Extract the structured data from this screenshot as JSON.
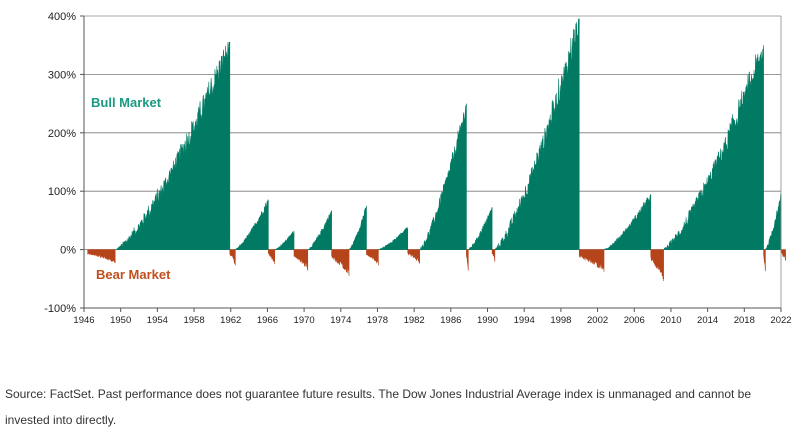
{
  "chart_data": {
    "type": "area",
    "title": "",
    "xlabel": "",
    "ylabel": "",
    "xlim": [
      1946,
      2022
    ],
    "ylim": [
      -100,
      400
    ],
    "y_ticks": [
      -100,
      0,
      100,
      200,
      300,
      400
    ],
    "y_tick_labels": [
      "-100%",
      "0%",
      "100%",
      "200%",
      "300%",
      "400%"
    ],
    "x_ticks": [
      1946,
      1950,
      1954,
      1958,
      1962,
      1966,
      1970,
      1974,
      1978,
      1982,
      1986,
      1990,
      1994,
      1998,
      2002,
      2006,
      2010,
      2014,
      2018,
      2022
    ],
    "x_tick_labels": [
      "1946",
      "1950",
      "1954",
      "1958",
      "1962",
      "1966",
      "1970",
      "1974",
      "1978",
      "1982",
      "1986",
      "1990",
      "1994",
      "1998",
      "2002",
      "2006",
      "2010",
      "2014",
      "2018",
      "2022"
    ],
    "grid": true,
    "series": [
      {
        "name": "Bull Market",
        "color": "#007a63",
        "markets": [
          {
            "start": 1949.5,
            "end": 1961.9,
            "peak": 355
          },
          {
            "start": 1962.5,
            "end": 1966.1,
            "peak": 85
          },
          {
            "start": 1966.8,
            "end": 1968.9,
            "peak": 32
          },
          {
            "start": 1970.4,
            "end": 1973.0,
            "peak": 67
          },
          {
            "start": 1974.9,
            "end": 1976.8,
            "peak": 75
          },
          {
            "start": 1978.1,
            "end": 1981.3,
            "peak": 38
          },
          {
            "start": 1982.6,
            "end": 1987.7,
            "peak": 250
          },
          {
            "start": 1987.9,
            "end": 1990.5,
            "peak": 72
          },
          {
            "start": 1990.8,
            "end": 2000.0,
            "peak": 395
          },
          {
            "start": 2002.7,
            "end": 2007.8,
            "peak": 94
          },
          {
            "start": 2009.2,
            "end": 2020.1,
            "peak": 350
          },
          {
            "start": 2020.3,
            "end": 2022.0,
            "peak": 95
          }
        ]
      },
      {
        "name": "Bear Market",
        "color": "#b5441a",
        "markets": [
          {
            "start": 1946.4,
            "end": 1949.4,
            "trough": -23
          },
          {
            "start": 1961.9,
            "end": 1962.5,
            "trough": -27
          },
          {
            "start": 1966.1,
            "end": 1966.8,
            "trough": -25
          },
          {
            "start": 1968.9,
            "end": 1970.4,
            "trough": -36
          },
          {
            "start": 1973.0,
            "end": 1974.9,
            "trough": -45
          },
          {
            "start": 1976.8,
            "end": 1978.1,
            "trough": -27
          },
          {
            "start": 1981.3,
            "end": 1982.6,
            "trough": -24
          },
          {
            "start": 1987.7,
            "end": 1987.9,
            "trough": -36
          },
          {
            "start": 1990.5,
            "end": 1990.8,
            "trough": -21
          },
          {
            "start": 2000.0,
            "end": 2002.7,
            "trough": -38
          },
          {
            "start": 2007.8,
            "end": 2009.2,
            "trough": -54
          },
          {
            "start": 2020.1,
            "end": 2020.3,
            "trough": -37
          },
          {
            "start": 2022.0,
            "end": 2022.5,
            "trough": -19
          }
        ]
      }
    ],
    "annotations": [
      {
        "text": "Bull Market",
        "color": "#1a9a80"
      },
      {
        "text": "Bear Market",
        "color": "#c0501f"
      }
    ]
  },
  "footer": {
    "source": "Source: FactSet. Past performance does not guarantee future results. The Dow Jones Industrial Average index is unmanaged and cannot be invested into directly."
  }
}
